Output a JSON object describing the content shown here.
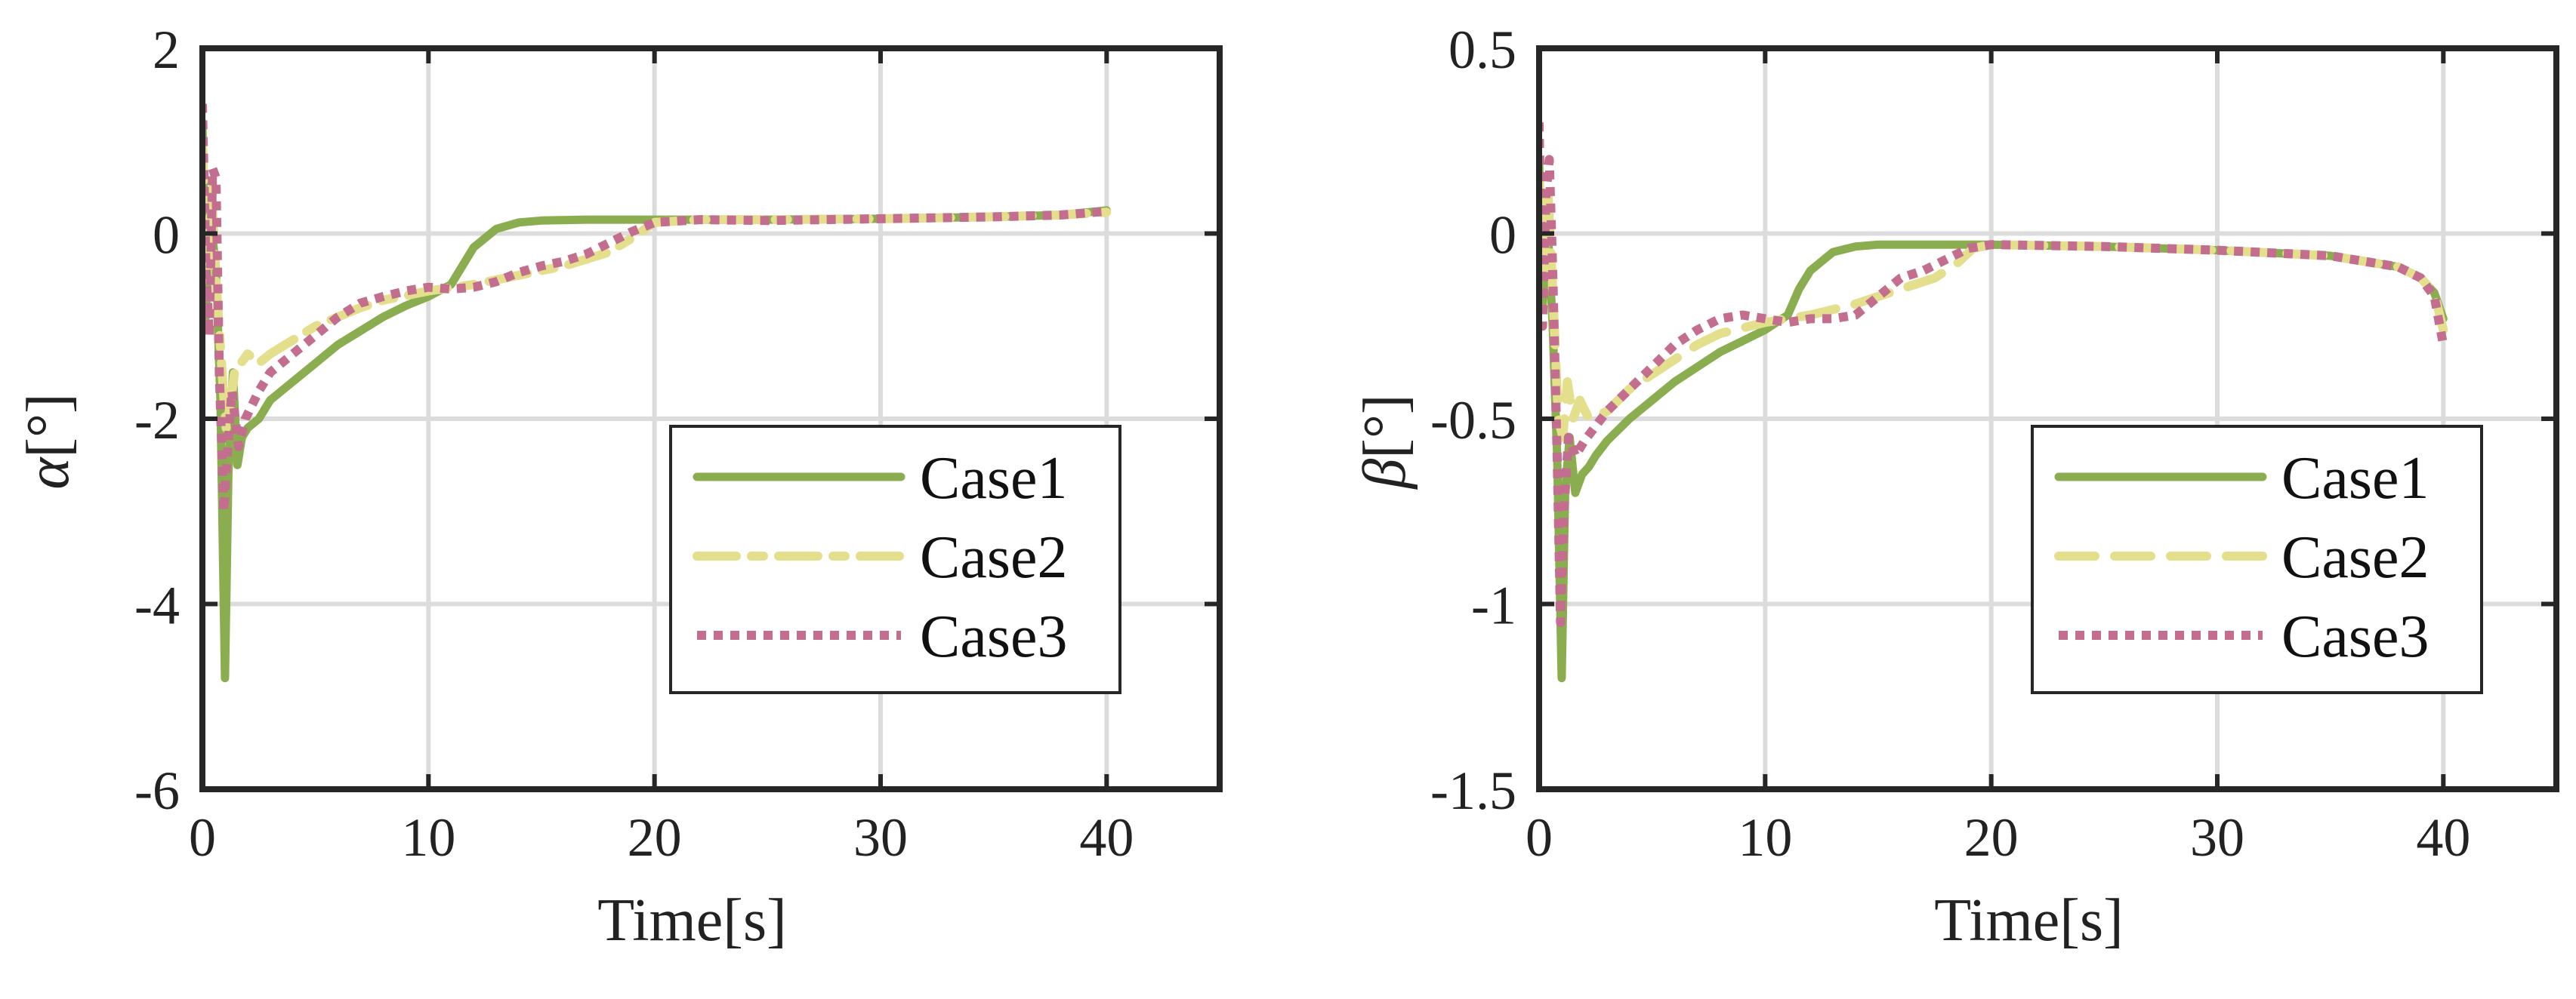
{
  "chart_data": [
    {
      "type": "line",
      "xlabel": "Time[s]",
      "ylabel_symbol": "α",
      "ylabel_unit": "[°]",
      "xlim": [
        0,
        45
      ],
      "ylim": [
        -6,
        2
      ],
      "xticks": [
        0,
        10,
        20,
        30,
        40
      ],
      "yticks": [
        2,
        0,
        -2,
        -4,
        -6
      ],
      "xtick_labels": [
        "0",
        "10",
        "20",
        "30",
        "40"
      ],
      "ytick_labels": [
        "2",
        "0",
        "-2",
        "-4",
        "-6"
      ],
      "grid": true,
      "legend_position": "bottom-right",
      "series": [
        {
          "name": "Case1",
          "color": "#8aae4f",
          "style": "solid",
          "points": [
            [
              0,
              1.2
            ],
            [
              0.15,
              -0.9
            ],
            [
              0.35,
              0.2
            ],
            [
              0.6,
              -0.4
            ],
            [
              0.8,
              -1.8
            ],
            [
              1.0,
              -4.8
            ],
            [
              1.15,
              -2.6
            ],
            [
              1.35,
              -1.5
            ],
            [
              1.55,
              -2.5
            ],
            [
              1.75,
              -2.2
            ],
            [
              2.0,
              -2.1
            ],
            [
              2.5,
              -2.0
            ],
            [
              3,
              -1.8
            ],
            [
              4,
              -1.6
            ],
            [
              5,
              -1.4
            ],
            [
              6,
              -1.2
            ],
            [
              7,
              -1.05
            ],
            [
              8,
              -0.9
            ],
            [
              9,
              -0.78
            ],
            [
              10,
              -0.68
            ],
            [
              11,
              -0.55
            ],
            [
              11.5,
              -0.35
            ],
            [
              12,
              -0.15
            ],
            [
              13,
              0.05
            ],
            [
              14,
              0.12
            ],
            [
              15,
              0.14
            ],
            [
              17,
              0.15
            ],
            [
              20,
              0.15
            ],
            [
              25,
              0.15
            ],
            [
              30,
              0.16
            ],
            [
              35,
              0.18
            ],
            [
              38,
              0.2
            ],
            [
              40,
              0.25
            ]
          ]
        },
        {
          "name": "Case2",
          "color": "#e3df8c",
          "style": "dash-dot",
          "points": [
            [
              0,
              1.0
            ],
            [
              0.2,
              -0.5
            ],
            [
              0.4,
              0.5
            ],
            [
              0.6,
              -0.5
            ],
            [
              0.9,
              -1.6
            ],
            [
              1.05,
              -2.1
            ],
            [
              1.2,
              -1.9
            ],
            [
              1.45,
              -1.45
            ],
            [
              1.7,
              -1.4
            ],
            [
              2.0,
              -1.3
            ],
            [
              2.5,
              -1.4
            ],
            [
              3,
              -1.3
            ],
            [
              4,
              -1.15
            ],
            [
              5,
              -1.0
            ],
            [
              6,
              -0.9
            ],
            [
              7,
              -0.8
            ],
            [
              8,
              -0.72
            ],
            [
              10,
              -0.62
            ],
            [
              12,
              -0.55
            ],
            [
              14,
              -0.45
            ],
            [
              16,
              -0.35
            ],
            [
              18,
              -0.2
            ],
            [
              19,
              -0.05
            ],
            [
              20,
              0.12
            ],
            [
              22,
              0.15
            ],
            [
              25,
              0.15
            ],
            [
              30,
              0.16
            ],
            [
              35,
              0.18
            ],
            [
              38,
              0.2
            ],
            [
              40,
              0.23
            ]
          ]
        },
        {
          "name": "Case3",
          "color": "#c46e8f",
          "style": "dotted",
          "points": [
            [
              0,
              1.4
            ],
            [
              0.15,
              -0.3
            ],
            [
              0.3,
              -1.1
            ],
            [
              0.45,
              0.7
            ],
            [
              0.6,
              0.6
            ],
            [
              0.75,
              -1.5
            ],
            [
              0.95,
              -3.0
            ],
            [
              1.1,
              -2.4
            ],
            [
              1.3,
              -1.7
            ],
            [
              1.6,
              -2.3
            ],
            [
              1.9,
              -2.0
            ],
            [
              2.5,
              -1.7
            ],
            [
              3,
              -1.5
            ],
            [
              4,
              -1.3
            ],
            [
              5,
              -1.1
            ],
            [
              6,
              -0.9
            ],
            [
              7,
              -0.75
            ],
            [
              8,
              -0.68
            ],
            [
              9,
              -0.62
            ],
            [
              10,
              -0.58
            ],
            [
              11,
              -0.6
            ],
            [
              12,
              -0.58
            ],
            [
              13,
              -0.52
            ],
            [
              14,
              -0.42
            ],
            [
              15,
              -0.35
            ],
            [
              16,
              -0.3
            ],
            [
              17,
              -0.22
            ],
            [
              18,
              -0.1
            ],
            [
              19,
              0.02
            ],
            [
              20,
              0.12
            ],
            [
              22,
              0.15
            ],
            [
              25,
              0.14
            ],
            [
              30,
              0.16
            ],
            [
              35,
              0.18
            ],
            [
              38,
              0.2
            ],
            [
              40,
              0.24
            ]
          ]
        }
      ]
    },
    {
      "type": "line",
      "xlabel": "Time[s]",
      "ylabel_symbol": "β",
      "ylabel_unit": "[°]",
      "xlim": [
        0,
        45
      ],
      "ylim": [
        -1.5,
        0.5
      ],
      "xticks": [
        0,
        10,
        20,
        30,
        40
      ],
      "yticks": [
        0.5,
        0,
        -0.5,
        -1,
        -1.5
      ],
      "xtick_labels": [
        "0",
        "10",
        "20",
        "30",
        "40"
      ],
      "ytick_labels": [
        "0.5",
        "0",
        "-0.5",
        "-1",
        "-1.5"
      ],
      "grid": true,
      "legend_position": "bottom-right",
      "series": [
        {
          "name": "Case1",
          "color": "#8aae4f",
          "style": "solid",
          "points": [
            [
              0,
              0.2
            ],
            [
              0.15,
              -0.2
            ],
            [
              0.35,
              0.05
            ],
            [
              0.6,
              -0.25
            ],
            [
              0.8,
              -0.6
            ],
            [
              1.0,
              -1.2
            ],
            [
              1.15,
              -0.7
            ],
            [
              1.35,
              -0.55
            ],
            [
              1.6,
              -0.7
            ],
            [
              1.9,
              -0.65
            ],
            [
              2.2,
              -0.63
            ],
            [
              2.5,
              -0.6
            ],
            [
              3,
              -0.56
            ],
            [
              4,
              -0.5
            ],
            [
              5,
              -0.45
            ],
            [
              6,
              -0.4
            ],
            [
              7,
              -0.36
            ],
            [
              8,
              -0.32
            ],
            [
              9,
              -0.29
            ],
            [
              10,
              -0.26
            ],
            [
              11,
              -0.22
            ],
            [
              11.5,
              -0.15
            ],
            [
              12,
              -0.1
            ],
            [
              13,
              -0.05
            ],
            [
              14,
              -0.035
            ],
            [
              15,
              -0.03
            ],
            [
              20,
              -0.03
            ],
            [
              25,
              -0.035
            ],
            [
              30,
              -0.045
            ],
            [
              35,
              -0.06
            ],
            [
              38,
              -0.09
            ],
            [
              39,
              -0.12
            ],
            [
              39.6,
              -0.16
            ],
            [
              40,
              -0.23
            ]
          ]
        },
        {
          "name": "Case2",
          "color": "#e3df8c",
          "style": "dashed",
          "points": [
            [
              0,
              0.15
            ],
            [
              0.2,
              -0.1
            ],
            [
              0.4,
              0.1
            ],
            [
              0.6,
              -0.15
            ],
            [
              0.85,
              -0.5
            ],
            [
              1.05,
              -0.55
            ],
            [
              1.25,
              -0.4
            ],
            [
              1.5,
              -0.5
            ],
            [
              1.8,
              -0.45
            ],
            [
              2.2,
              -0.5
            ],
            [
              3,
              -0.48
            ],
            [
              4,
              -0.42
            ],
            [
              5,
              -0.38
            ],
            [
              6,
              -0.34
            ],
            [
              7,
              -0.3
            ],
            [
              8,
              -0.27
            ],
            [
              10,
              -0.24
            ],
            [
              12,
              -0.22
            ],
            [
              14,
              -0.19
            ],
            [
              16,
              -0.15
            ],
            [
              17.5,
              -0.12
            ],
            [
              18.5,
              -0.08
            ],
            [
              19.2,
              -0.04
            ],
            [
              20,
              -0.03
            ],
            [
              25,
              -0.035
            ],
            [
              30,
              -0.045
            ],
            [
              35,
              -0.06
            ],
            [
              38,
              -0.09
            ],
            [
              39,
              -0.12
            ],
            [
              39.6,
              -0.16
            ],
            [
              40,
              -0.26
            ]
          ]
        },
        {
          "name": "Case3",
          "color": "#c46e8f",
          "style": "dotted",
          "points": [
            [
              0,
              0.3
            ],
            [
              0.15,
              -0.25
            ],
            [
              0.3,
              0.1
            ],
            [
              0.45,
              0.2
            ],
            [
              0.6,
              -0.1
            ],
            [
              0.8,
              -0.6
            ],
            [
              0.95,
              -1.05
            ],
            [
              1.1,
              -0.75
            ],
            [
              1.3,
              -0.55
            ],
            [
              1.6,
              -0.6
            ],
            [
              2.0,
              -0.56
            ],
            [
              2.5,
              -0.52
            ],
            [
              3,
              -0.48
            ],
            [
              4,
              -0.42
            ],
            [
              5,
              -0.36
            ],
            [
              6,
              -0.3
            ],
            [
              7,
              -0.26
            ],
            [
              8,
              -0.23
            ],
            [
              9,
              -0.22
            ],
            [
              10,
              -0.23
            ],
            [
              11,
              -0.24
            ],
            [
              12,
              -0.23
            ],
            [
              13,
              -0.23
            ],
            [
              14,
              -0.22
            ],
            [
              15,
              -0.17
            ],
            [
              16,
              -0.12
            ],
            [
              17,
              -0.1
            ],
            [
              18,
              -0.07
            ],
            [
              19,
              -0.04
            ],
            [
              20,
              -0.03
            ],
            [
              25,
              -0.035
            ],
            [
              30,
              -0.045
            ],
            [
              35,
              -0.06
            ],
            [
              38,
              -0.09
            ],
            [
              39,
              -0.12
            ],
            [
              39.6,
              -0.17
            ],
            [
              40,
              -0.3
            ]
          ]
        }
      ]
    }
  ]
}
